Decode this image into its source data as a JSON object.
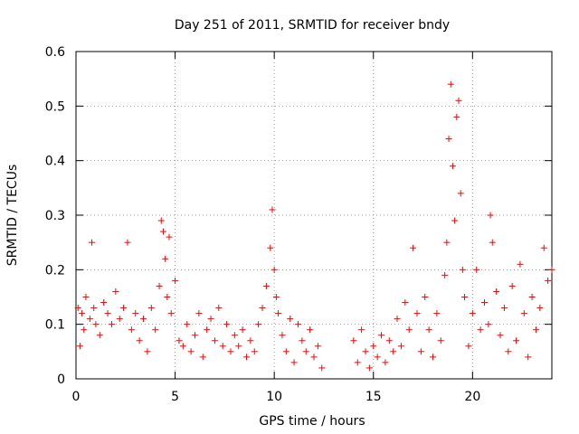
{
  "chart_data": {
    "type": "scatter",
    "title": "Day 251 of 2011, SRMTID for receiver bndy",
    "xlabel": "GPS time / hours",
    "ylabel": "SRMTID / TECUs",
    "xlim": [
      0,
      24
    ],
    "ylim": [
      0,
      0.6
    ],
    "xticks": [
      0,
      5,
      10,
      15,
      20
    ],
    "xtick_labels": [
      "0",
      "5",
      "10",
      "15",
      "20"
    ],
    "yticks": [
      0,
      0.1,
      0.2,
      0.3,
      0.4,
      0.5,
      0.6
    ],
    "ytick_labels": [
      "0",
      "0.1",
      "0.2",
      "0.3",
      "0.4",
      "0.5",
      "0.6"
    ],
    "grid": true,
    "marker": "+",
    "color": "#ff0000",
    "series": [
      {
        "name": "SRMTID",
        "x": [
          0.1,
          0.2,
          0.3,
          0.4,
          0.5,
          0.7,
          0.8,
          0.9,
          1.0,
          1.2,
          1.4,
          1.6,
          1.8,
          2.0,
          2.2,
          2.4,
          2.6,
          2.8,
          3.0,
          3.2,
          3.4,
          3.6,
          3.8,
          4.0,
          4.2,
          4.3,
          4.4,
          4.5,
          4.6,
          4.7,
          4.8,
          5.0,
          5.2,
          5.4,
          5.6,
          5.8,
          6.0,
          6.2,
          6.4,
          6.6,
          6.8,
          7.0,
          7.2,
          7.4,
          7.6,
          7.8,
          8.0,
          8.2,
          8.4,
          8.6,
          8.8,
          9.0,
          9.2,
          9.4,
          9.6,
          9.8,
          9.9,
          10.0,
          10.1,
          10.2,
          10.4,
          10.6,
          10.8,
          11.0,
          11.2,
          11.4,
          11.6,
          11.8,
          12.0,
          12.2,
          12.4,
          14.0,
          14.2,
          14.4,
          14.6,
          14.8,
          15.0,
          15.2,
          15.4,
          15.6,
          15.8,
          16.0,
          16.2,
          16.4,
          16.6,
          16.8,
          17.0,
          17.2,
          17.4,
          17.6,
          17.8,
          18.0,
          18.2,
          18.4,
          18.6,
          18.7,
          18.8,
          18.9,
          19.0,
          19.1,
          19.2,
          19.3,
          19.4,
          19.5,
          19.6,
          19.8,
          20.0,
          20.2,
          20.4,
          20.6,
          20.8,
          20.9,
          21.0,
          21.2,
          21.4,
          21.6,
          21.8,
          22.0,
          22.2,
          22.4,
          22.6,
          22.8,
          23.0,
          23.2,
          23.4,
          23.6,
          23.8,
          24.0
        ],
        "y": [
          0.13,
          0.06,
          0.12,
          0.09,
          0.15,
          0.11,
          0.25,
          0.13,
          0.1,
          0.08,
          0.14,
          0.12,
          0.1,
          0.16,
          0.11,
          0.13,
          0.25,
          0.09,
          0.12,
          0.07,
          0.11,
          0.05,
          0.13,
          0.09,
          0.17,
          0.29,
          0.27,
          0.22,
          0.15,
          0.26,
          0.12,
          0.18,
          0.07,
          0.06,
          0.1,
          0.05,
          0.08,
          0.12,
          0.04,
          0.09,
          0.11,
          0.07,
          0.13,
          0.06,
          0.1,
          0.05,
          0.08,
          0.06,
          0.09,
          0.04,
          0.07,
          0.05,
          0.1,
          0.13,
          0.17,
          0.24,
          0.31,
          0.2,
          0.15,
          0.12,
          0.08,
          0.05,
          0.11,
          0.03,
          0.1,
          0.07,
          0.05,
          0.09,
          0.04,
          0.06,
          0.02,
          0.07,
          0.03,
          0.09,
          0.05,
          0.02,
          0.06,
          0.04,
          0.08,
          0.03,
          0.07,
          0.05,
          0.11,
          0.06,
          0.14,
          0.09,
          0.24,
          0.12,
          0.05,
          0.15,
          0.09,
          0.04,
          0.12,
          0.07,
          0.19,
          0.25,
          0.44,
          0.54,
          0.39,
          0.29,
          0.48,
          0.51,
          0.34,
          0.2,
          0.15,
          0.06,
          0.12,
          0.2,
          0.09,
          0.14,
          0.1,
          0.3,
          0.25,
          0.16,
          0.08,
          0.13,
          0.05,
          0.17,
          0.07,
          0.21,
          0.12,
          0.04,
          0.15,
          0.09,
          0.13,
          0.24,
          0.18,
          0.2
        ]
      }
    ]
  }
}
